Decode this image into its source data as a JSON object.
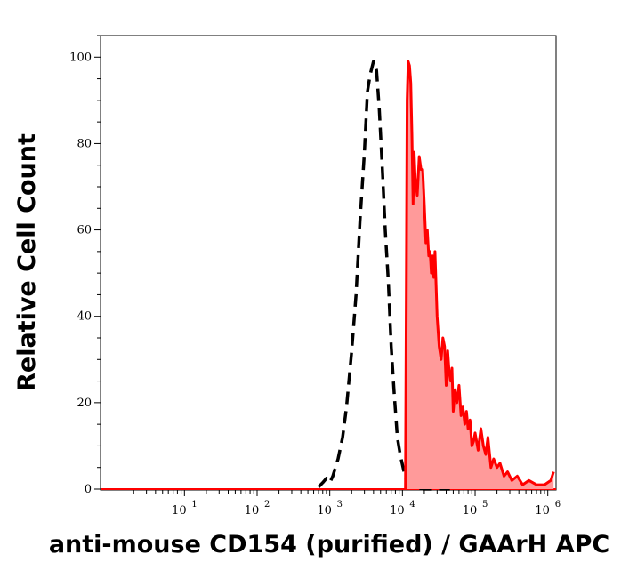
{
  "chart_data": {
    "type": "area",
    "title": "",
    "xlabel": "anti-mouse CD154 (purified) / GAArH APC",
    "ylabel": "Relative Cell Count",
    "x_scale": "log",
    "xlim": [
      0.7,
      1300000
    ],
    "ylim": [
      0,
      105
    ],
    "x_ticks": [
      {
        "value": 10,
        "base": "10",
        "exp": "1"
      },
      {
        "value": 100,
        "base": "10",
        "exp": "2"
      },
      {
        "value": 1000,
        "base": "10",
        "exp": "3"
      },
      {
        "value": 10000,
        "base": "10",
        "exp": "4"
      },
      {
        "value": 100000,
        "base": "10",
        "exp": "5"
      },
      {
        "value": 1000000,
        "base": "10",
        "exp": "6"
      }
    ],
    "y_ticks": [
      0,
      20,
      40,
      60,
      80,
      100
    ],
    "grid": false,
    "series": [
      {
        "style": "dashed-black-outline",
        "color": "#000000",
        "x": [
          700,
          800,
          900,
          1000,
          1100,
          1300,
          1500,
          1700,
          2000,
          2300,
          2600,
          3000,
          3300,
          3600,
          4000,
          4400,
          4800,
          5300,
          5800,
          6400,
          7000,
          7700,
          8500,
          9300,
          10500,
          11500,
          12500,
          20000,
          30000,
          45000
        ],
        "y": [
          0.5,
          1.5,
          2.5,
          1.5,
          3,
          7,
          12,
          19,
          32,
          45,
          62,
          78,
          92,
          96,
          99,
          97,
          88,
          74,
          60,
          48,
          33,
          22,
          12,
          8,
          4,
          1.5,
          0.5,
          0,
          0,
          0
        ]
      },
      {
        "style": "filled-red",
        "color": "#ff0000",
        "fill": "#ff9a9a",
        "x": [
          11000,
          11300,
          11600,
          12000,
          12500,
          13000,
          13500,
          14000,
          14500,
          15000,
          16000,
          17000,
          18000,
          19000,
          20000,
          21000,
          22000,
          23000,
          24000,
          25000,
          26000,
          27000,
          28000,
          30000,
          32000,
          34000,
          36000,
          38000,
          40000,
          42000,
          44000,
          46000,
          48000,
          50000,
          53000,
          56000,
          60000,
          64000,
          68000,
          72000,
          76000,
          80000,
          85000,
          90000,
          95000,
          100000,
          110000,
          120000,
          130000,
          140000,
          150000,
          165000,
          180000,
          200000,
          220000,
          250000,
          280000,
          320000,
          380000,
          450000,
          550000,
          700000,
          900000,
          1100000,
          1200000
        ],
        "y": [
          0,
          45,
          90,
          99,
          98,
          94,
          82,
          66,
          78,
          72,
          68,
          77,
          74,
          74,
          66,
          57,
          60,
          54,
          55,
          50,
          54,
          49,
          55,
          40,
          33,
          30,
          35,
          33,
          24,
          32,
          27,
          25,
          28,
          18,
          23,
          20,
          24,
          17,
          19,
          15,
          18,
          14,
          16,
          10,
          11,
          13,
          9,
          14,
          10,
          8,
          12,
          5,
          7,
          5,
          6,
          3,
          4,
          2,
          3,
          1,
          2,
          1,
          1,
          2,
          4
        ]
      }
    ]
  }
}
